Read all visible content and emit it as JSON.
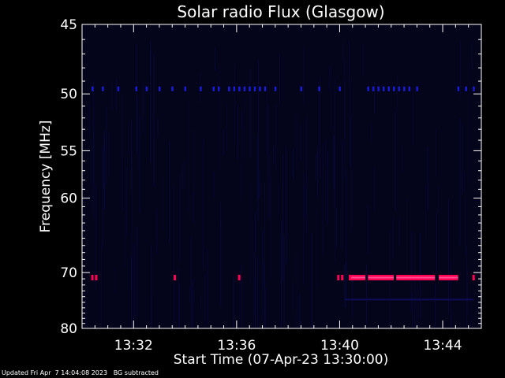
{
  "chart_data": {
    "type": "heatmap",
    "title": "Solar radio Flux (Glasgow)",
    "xlabel": "Start Time (07-Apr-23 13:30:00)",
    "ylabel": "Frequency [MHz]",
    "x_unit": "minutes after 13:30",
    "xlim": [
      0,
      15.5
    ],
    "x_ticks": [
      {
        "value": 2,
        "label": "13:32"
      },
      {
        "value": 6,
        "label": "13:36"
      },
      {
        "value": 10,
        "label": "13:40"
      },
      {
        "value": 14,
        "label": "13:44"
      }
    ],
    "y_scale": "reciprocal",
    "ylim": [
      45,
      80
    ],
    "y_ticks": [
      45,
      50,
      55,
      60,
      70,
      80
    ],
    "colors": {
      "background": "#04041a",
      "faint": "#0d0d55",
      "weak": "#1c1cd8",
      "strong": "#ff0055",
      "core": "#ff5090"
    },
    "series": [
      {
        "frequency": 49.6,
        "intensity": "weak",
        "times": [
          0.4,
          0.8,
          1.4,
          2.1,
          2.5,
          3.0,
          3.5,
          4.0,
          4.6,
          5.1,
          5.3,
          5.7,
          5.9,
          6.1,
          6.3,
          6.5,
          6.7,
          6.9,
          7.1,
          7.5,
          8.5,
          9.2,
          10.0,
          11.1,
          11.3,
          11.5,
          11.7,
          11.9,
          12.1,
          12.3,
          12.5,
          12.7,
          13.0,
          14.6,
          14.9,
          15.2
        ]
      },
      {
        "frequency": 70.8,
        "intensity": "strong",
        "times": [
          0.4,
          0.55,
          3.6,
          6.1,
          9.95,
          10.1,
          10.4,
          15.2
        ],
        "intervals": [
          [
            10.4,
            11.0
          ],
          [
            11.1,
            12.1
          ],
          [
            12.2,
            13.7
          ],
          [
            13.85,
            14.6
          ]
        ]
      },
      {
        "frequency": 74.5,
        "intensity": "faint",
        "intervals": [
          [
            10.2,
            15.2
          ]
        ]
      }
    ]
  },
  "footer": {
    "updated": "Updated Fri Apr  7 14:04:08 2023",
    "note": "BG subtracted"
  }
}
